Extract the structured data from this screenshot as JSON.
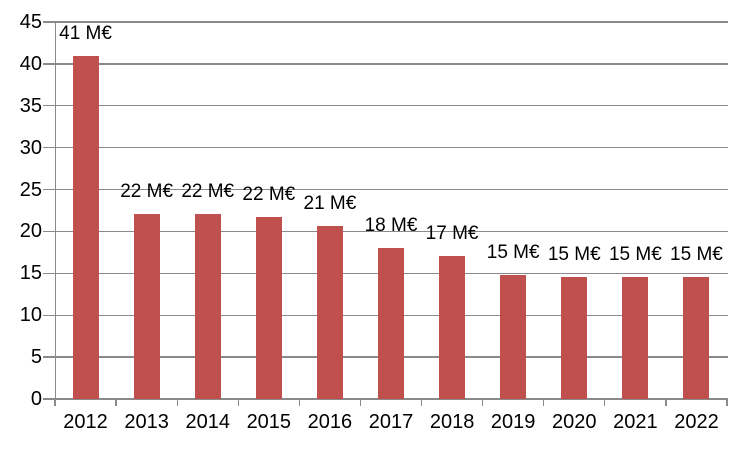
{
  "chart_data": {
    "type": "bar",
    "title": "",
    "xlabel": "",
    "ylabel": "",
    "categories": [
      "2012",
      "2013",
      "2014",
      "2015",
      "2016",
      "2017",
      "2018",
      "2019",
      "2020",
      "2021",
      "2022"
    ],
    "values": [
      41,
      22.1,
      22.1,
      21.7,
      20.7,
      18,
      17.1,
      14.8,
      14.6,
      14.6,
      14.6
    ],
    "data_labels": [
      "41 M€",
      "22 M€",
      "22 M€",
      "22 M€",
      "21 M€",
      "18 M€",
      "17 M€",
      "15 M€",
      "15 M€",
      "15 M€",
      "15 M€"
    ],
    "unit": "M€",
    "ylim": [
      0,
      45
    ],
    "yticks": [
      0,
      5,
      10,
      15,
      20,
      25,
      30,
      35,
      40,
      45
    ],
    "grid": true,
    "legend": "none",
    "series_name": ""
  },
  "style": {
    "bar_color": "#c0504d",
    "grid_color": "#8a8a8a",
    "axis_color": "#8a8a8a",
    "text_color": "#000000",
    "background": "#ffffff"
  }
}
